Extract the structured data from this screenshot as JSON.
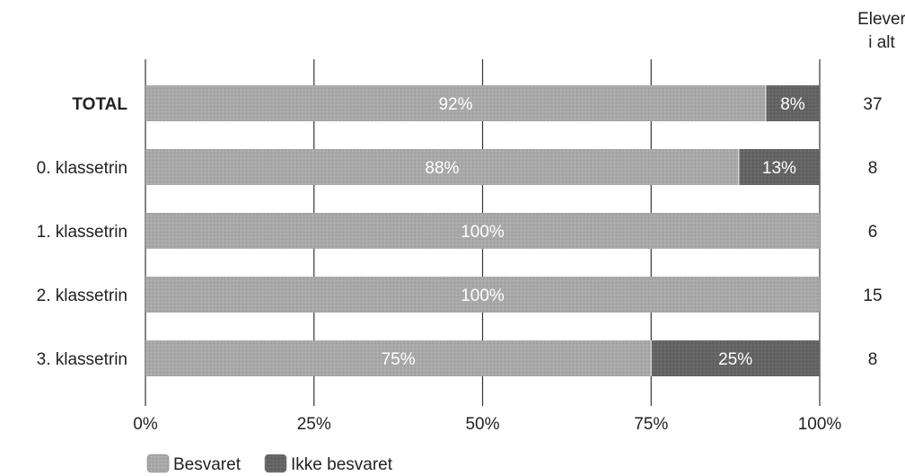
{
  "chart_data": {
    "type": "bar",
    "orientation": "horizontal",
    "stacked": true,
    "categories": [
      "TOTAL",
      "0. klassetrin",
      "1. klassetrin",
      "2. klassetrin",
      "3. klassetrin"
    ],
    "series": [
      {
        "name": "Besvaret",
        "values": [
          92,
          88,
          100,
          100,
          75
        ],
        "labels": [
          "92%",
          "88%",
          "100%",
          "100%",
          "75%"
        ],
        "color": "#a6a6a6"
      },
      {
        "name": "Ikke besvaret",
        "values": [
          8,
          13,
          0,
          0,
          25
        ],
        "labels": [
          "8%",
          "13%",
          "",
          "",
          "25%"
        ],
        "color": "#636363"
      }
    ],
    "xticks": [
      "0%",
      "25%",
      "50%",
      "75%",
      "100%"
    ],
    "xlim": [
      0,
      100
    ],
    "grid": true,
    "legend_position": "bottom-left",
    "count_column": {
      "header_line1": "Elever",
      "header_line2": "i alt",
      "values": [
        "37",
        "8",
        "6",
        "15",
        "8"
      ]
    }
  }
}
